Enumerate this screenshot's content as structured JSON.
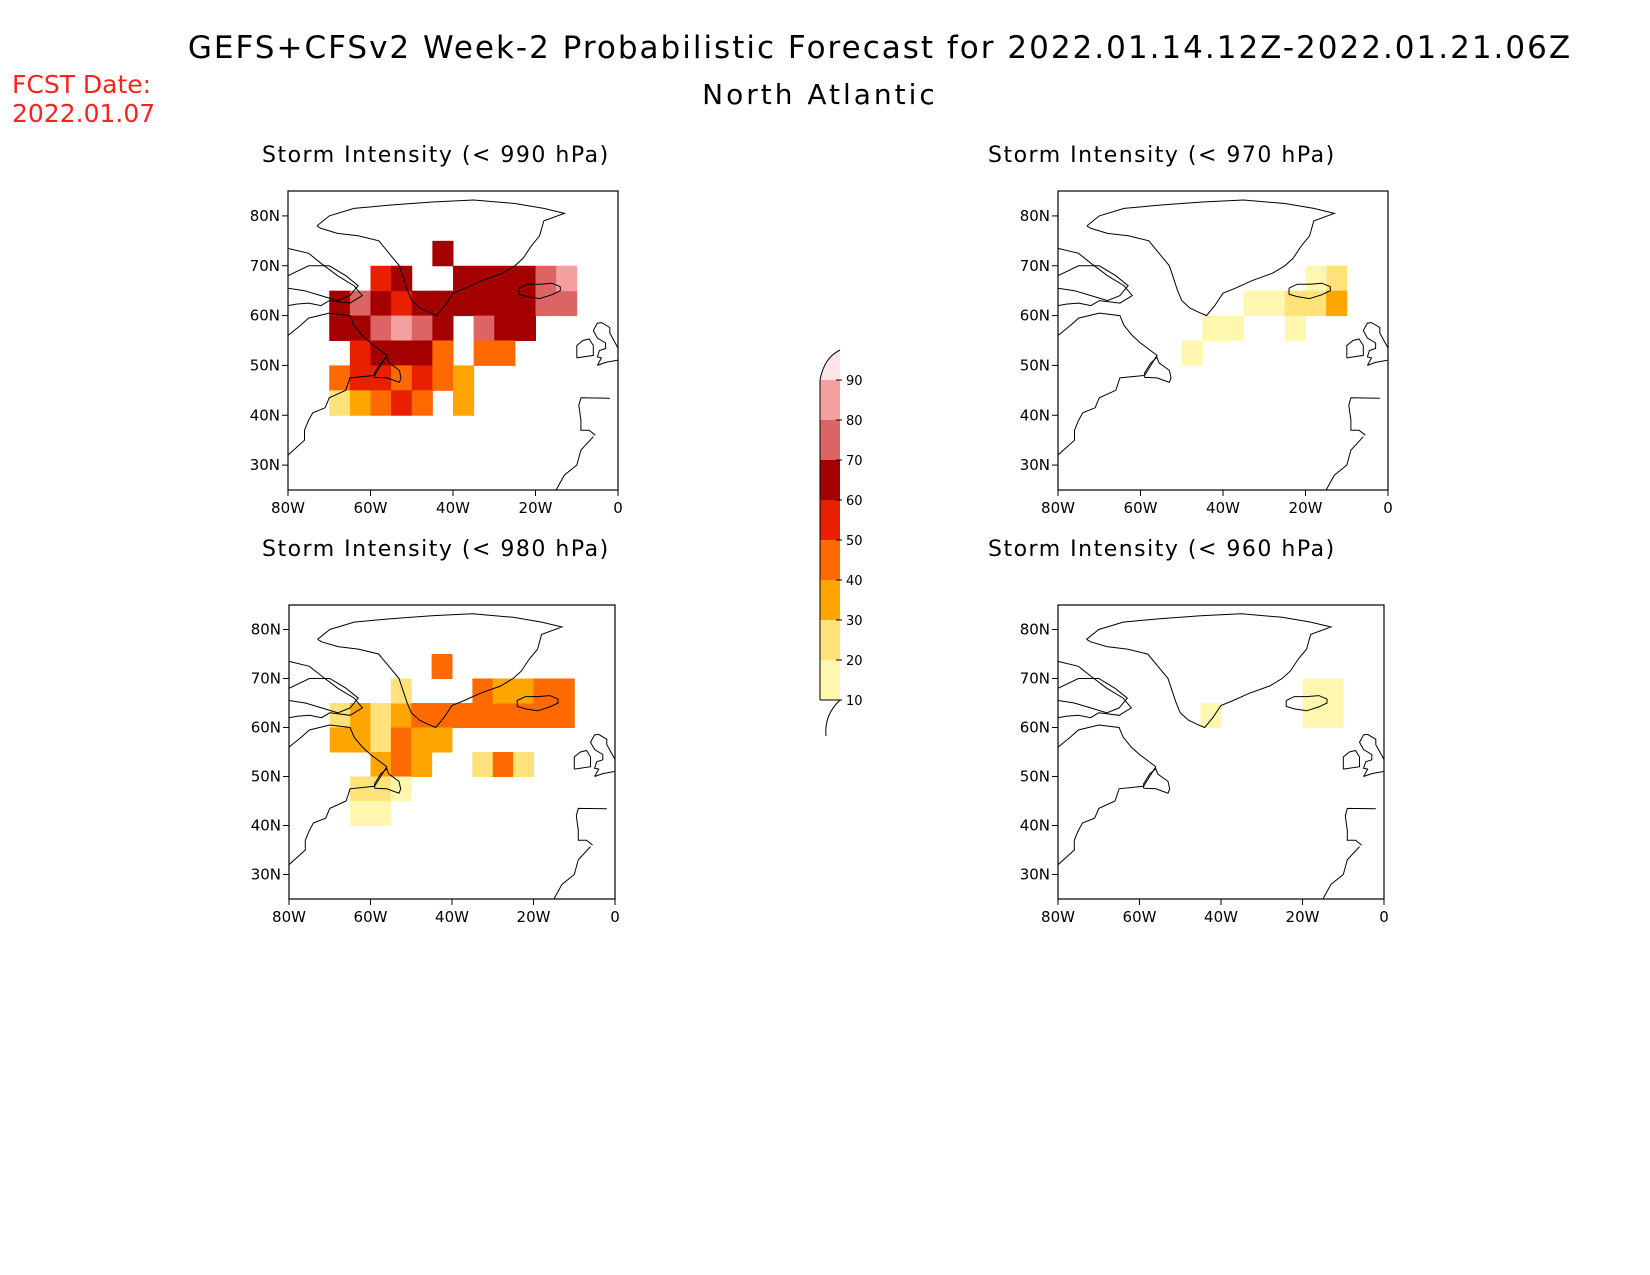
{
  "title": "GEFS+CFSv2 Week-2 Probabilistic Forecast for 2022.01.14.12Z-2022.01.21.06Z",
  "subtitle": "North Atlantic",
  "fcst_date": {
    "label": "FCST Date:",
    "value": "2022.01.07"
  },
  "panels": [
    {
      "title": "Storm Intensity (< 990 hPa)"
    },
    {
      "title": "Storm Intensity (< 970 hPa)"
    },
    {
      "title": "Storm Intensity (< 980 hPa)"
    },
    {
      "title": "Storm Intensity (< 960 hPa)"
    }
  ],
  "axes": {
    "lon_ticks": [
      "80W",
      "60W",
      "40W",
      "20W",
      "0"
    ],
    "lat_ticks": [
      "80N",
      "70N",
      "60N",
      "50N",
      "40N",
      "30N"
    ]
  },
  "colorbar": {
    "levels": [
      "10",
      "20",
      "30",
      "40",
      "50",
      "60",
      "70",
      "80",
      "90"
    ],
    "colors": [
      "#fff7b0",
      "#ffe27a",
      "#ffa500",
      "#ff6a00",
      "#e82000",
      "#a50000",
      "#dc6464",
      "#f4a0a0",
      "#fde4e8"
    ],
    "low_color": "#ffffff"
  },
  "chart_data": {
    "type": "heatmap",
    "units": "probability (%)",
    "x": "longitude (deg)",
    "y": "latitude (deg)",
    "xlim": [
      -80,
      0
    ],
    "ylim": [
      25,
      85
    ],
    "panels": [
      {
        "threshold_hPa": 990,
        "cells": [
          [
            -70,
            60,
            65
          ],
          [
            -65,
            60,
            70
          ],
          [
            -60,
            60,
            65
          ],
          [
            -55,
            60,
            55
          ],
          [
            -50,
            60,
            60
          ],
          [
            -45,
            60,
            60
          ],
          [
            -40,
            60,
            65
          ],
          [
            -35,
            60,
            65
          ],
          [
            -30,
            60,
            65
          ],
          [
            -25,
            60,
            60
          ],
          [
            -20,
            60,
            70
          ],
          [
            -15,
            60,
            70
          ],
          [
            -60,
            65,
            55
          ],
          [
            -55,
            65,
            60
          ],
          [
            -40,
            65,
            60
          ],
          [
            -35,
            65,
            65
          ],
          [
            -30,
            65,
            60
          ],
          [
            -25,
            65,
            65
          ],
          [
            -20,
            65,
            70
          ],
          [
            -15,
            65,
            80
          ],
          [
            -45,
            70,
            65
          ],
          [
            -70,
            55,
            60
          ],
          [
            -65,
            55,
            60
          ],
          [
            -60,
            55,
            75
          ],
          [
            -55,
            55,
            80
          ],
          [
            -50,
            55,
            70
          ],
          [
            -45,
            55,
            60
          ],
          [
            -35,
            55,
            70
          ],
          [
            -30,
            55,
            60
          ],
          [
            -25,
            55,
            60
          ],
          [
            -65,
            50,
            55
          ],
          [
            -60,
            50,
            60
          ],
          [
            -55,
            50,
            65
          ],
          [
            -50,
            50,
            60
          ],
          [
            -45,
            50,
            45
          ],
          [
            -35,
            50,
            45
          ],
          [
            -30,
            50,
            40
          ],
          [
            -70,
            45,
            40
          ],
          [
            -65,
            45,
            50
          ],
          [
            -60,
            45,
            55
          ],
          [
            -55,
            45,
            40
          ],
          [
            -50,
            45,
            50
          ],
          [
            -45,
            45,
            45
          ],
          [
            -40,
            45,
            30
          ],
          [
            -70,
            40,
            20
          ],
          [
            -65,
            40,
            30
          ],
          [
            -60,
            40,
            40
          ],
          [
            -55,
            40,
            50
          ],
          [
            -50,
            40,
            40
          ],
          [
            -40,
            40,
            30
          ]
        ]
      },
      {
        "threshold_hPa": 970,
        "cells": [
          [
            -45,
            55,
            10
          ],
          [
            -40,
            55,
            10
          ],
          [
            -35,
            60,
            10
          ],
          [
            -30,
            60,
            15
          ],
          [
            -25,
            60,
            20
          ],
          [
            -20,
            60,
            20
          ],
          [
            -15,
            65,
            20
          ],
          [
            -20,
            65,
            15
          ],
          [
            -15,
            60,
            30
          ],
          [
            -50,
            50,
            10
          ],
          [
            -25,
            55,
            10
          ]
        ]
      },
      {
        "threshold_hPa": 980,
        "cells": [
          [
            -70,
            60,
            20
          ],
          [
            -65,
            60,
            30
          ],
          [
            -60,
            60,
            20
          ],
          [
            -55,
            60,
            30
          ],
          [
            -50,
            60,
            40
          ],
          [
            -45,
            60,
            40
          ],
          [
            -40,
            60,
            40
          ],
          [
            -35,
            60,
            40
          ],
          [
            -30,
            60,
            45
          ],
          [
            -25,
            60,
            40
          ],
          [
            -20,
            60,
            40
          ],
          [
            -15,
            60,
            45
          ],
          [
            -55,
            65,
            20
          ],
          [
            -35,
            65,
            40
          ],
          [
            -30,
            65,
            35
          ],
          [
            -25,
            65,
            30
          ],
          [
            -20,
            65,
            40
          ],
          [
            -15,
            65,
            45
          ],
          [
            -45,
            70,
            40
          ],
          [
            -70,
            55,
            30
          ],
          [
            -65,
            55,
            30
          ],
          [
            -60,
            55,
            20
          ],
          [
            -55,
            55,
            40
          ],
          [
            -50,
            55,
            30
          ],
          [
            -45,
            55,
            30
          ],
          [
            -60,
            50,
            30
          ],
          [
            -55,
            50,
            40
          ],
          [
            -50,
            50,
            30
          ],
          [
            -35,
            50,
            20
          ],
          [
            -30,
            50,
            40
          ],
          [
            -25,
            50,
            20
          ],
          [
            -65,
            45,
            20
          ],
          [
            -60,
            45,
            20
          ],
          [
            -55,
            45,
            15
          ],
          [
            -65,
            40,
            15
          ],
          [
            -60,
            40,
            15
          ]
        ]
      },
      {
        "threshold_hPa": 960,
        "cells": [
          [
            -20,
            65,
            10
          ],
          [
            -15,
            65,
            10
          ],
          [
            -20,
            60,
            10
          ],
          [
            -15,
            60,
            10
          ],
          [
            -45,
            60,
            10
          ]
        ]
      }
    ]
  }
}
